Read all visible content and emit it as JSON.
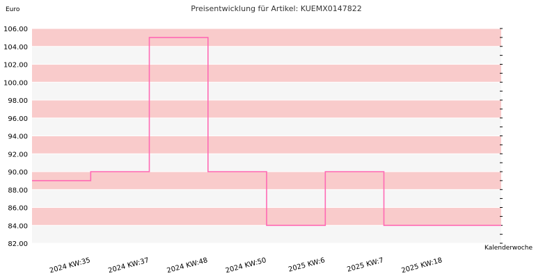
{
  "chart_data": {
    "type": "line",
    "step": true,
    "title": "Preisentwicklung für Artikel: KUEMX0147822",
    "ylabel": "Euro",
    "xlabel": "Kalenderwoche",
    "ylim": [
      82,
      106
    ],
    "yticks": [
      "82.00",
      "84.00",
      "86.00",
      "88.00",
      "90.00",
      "92.00",
      "94.00",
      "96.00",
      "98.00",
      "100.00",
      "102.00",
      "104.00",
      "106.00"
    ],
    "categories": [
      "2024 KW:35",
      "2024 KW:37",
      "2024 KW:48",
      "2024 KW:50",
      "2025 KW:6",
      "2025 KW:7",
      "2025 KW:18"
    ],
    "values": [
      89,
      90,
      105,
      90,
      84,
      90,
      84
    ],
    "grid": true,
    "colors": {
      "line": "#ff69b4",
      "band_a": "#f9cbcb",
      "band_b": "#f6f6f6",
      "grid": "#ffffff",
      "axis": "#000000"
    }
  }
}
